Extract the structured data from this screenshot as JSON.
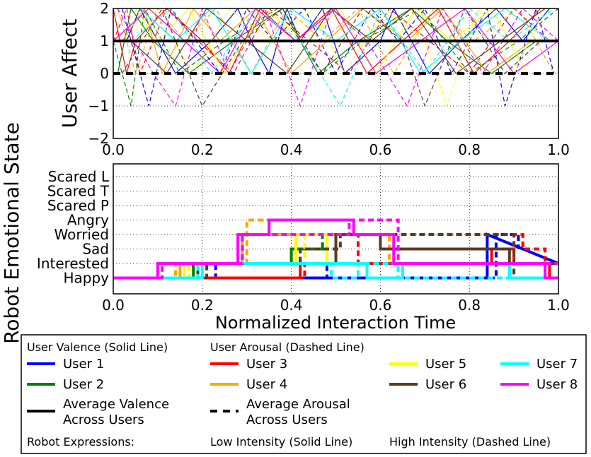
{
  "figure": {
    "ylabel_outer": "Robot Emotional State"
  },
  "chart_data": [
    {
      "type": "line",
      "ylabel": "User Affect",
      "xlabel": "",
      "xlim": [
        0,
        1
      ],
      "ylim": [
        -2,
        2
      ],
      "xticks": [
        "0.0",
        "0.2",
        "0.4",
        "0.6",
        "0.8",
        "1.0"
      ],
      "yticks": [
        "−2",
        "−1",
        "0",
        "1",
        "2"
      ],
      "grid": true,
      "average_valence": 1,
      "average_arousal": 0,
      "series": [
        {
          "name": "User 1",
          "color": "#0000ff",
          "valence_x": [
            0.03,
            0.06,
            0.14,
            0.22,
            0.28,
            0.31,
            0.35,
            0.39,
            0.42,
            0.47,
            0.52,
            0.6,
            0.63,
            0.71,
            0.78,
            0.86,
            0.92,
            0.98
          ],
          "valence_y": [
            1,
            2,
            0,
            1,
            2,
            1,
            0,
            2,
            1,
            2,
            0,
            1,
            2,
            0,
            1,
            2,
            1,
            2
          ],
          "arousal_x": [
            0.02,
            0.08,
            0.13,
            0.24,
            0.3,
            0.36,
            0.43,
            0.5,
            0.58,
            0.64,
            0.7,
            0.76,
            0.84,
            0.88,
            0.95,
            0.99
          ],
          "arousal_y": [
            2,
            -1,
            2,
            0,
            2,
            1,
            2,
            0,
            2,
            1,
            2,
            0,
            2,
            -1,
            2,
            0
          ]
        },
        {
          "name": "User 2",
          "color": "#008000",
          "valence_x": [
            0.01,
            0.04,
            0.09,
            0.17,
            0.27,
            0.38,
            0.46,
            0.55,
            0.67,
            0.75,
            0.85,
            0.95
          ],
          "valence_y": [
            0,
            2,
            1,
            0,
            1,
            2,
            0,
            1,
            2,
            1,
            0,
            1
          ],
          "arousal_x": [
            0.0,
            0.04,
            0.07,
            0.15,
            0.25,
            0.37,
            0.47,
            0.56,
            0.69,
            0.8,
            0.91,
            1.0
          ],
          "arousal_y": [
            1,
            -1,
            2,
            0,
            1,
            2,
            0,
            1,
            2,
            0,
            1,
            2
          ]
        },
        {
          "name": "User 3",
          "color": "#ff0000",
          "valence_x": [
            0.0,
            0.03,
            0.05,
            0.12,
            0.2,
            0.26,
            0.33,
            0.41,
            0.49,
            0.57,
            0.65,
            0.73,
            0.81,
            0.89,
            0.96
          ],
          "valence_y": [
            2,
            0,
            1,
            2,
            1,
            0,
            2,
            1,
            2,
            0,
            1,
            2,
            0,
            1,
            2
          ],
          "arousal_x": [
            0.0,
            0.03,
            0.06,
            0.12,
            0.19,
            0.27,
            0.35,
            0.44,
            0.53,
            0.62,
            0.71,
            0.8,
            0.9,
            0.98
          ],
          "arousal_y": [
            1,
            2,
            0,
            2,
            1,
            0,
            2,
            1,
            0,
            2,
            1,
            0,
            2,
            1
          ]
        },
        {
          "name": "User 4",
          "color": "#ffa500",
          "valence_x": [
            0.02,
            0.07,
            0.11,
            0.18,
            0.24,
            0.32,
            0.4,
            0.48,
            0.56,
            0.66,
            0.74,
            0.84,
            0.94
          ],
          "valence_y": [
            1,
            2,
            0,
            2,
            1,
            2,
            0,
            1,
            2,
            1,
            2,
            0,
            1
          ],
          "arousal_x": [
            0.01,
            0.05,
            0.1,
            0.16,
            0.23,
            0.31,
            0.39,
            0.47,
            0.55,
            0.63,
            0.72,
            0.81,
            0.91,
            0.99
          ],
          "arousal_y": [
            2,
            0,
            2,
            1,
            2,
            0,
            2,
            1,
            2,
            0,
            2,
            1,
            2,
            0
          ]
        },
        {
          "name": "User 5",
          "color": "#ffff00",
          "valence_x": [
            0.05,
            0.1,
            0.17,
            0.25,
            0.34,
            0.43,
            0.51,
            0.59,
            0.68,
            0.76,
            0.85,
            0.93
          ],
          "valence_y": [
            2,
            1,
            2,
            0,
            2,
            1,
            2,
            0,
            2,
            1,
            2,
            0
          ],
          "arousal_x": [
            0.03,
            0.09,
            0.18,
            0.26,
            0.36,
            0.45,
            0.52,
            0.61,
            0.7,
            0.75,
            0.82,
            0.9,
            0.97
          ],
          "arousal_y": [
            1,
            2,
            0,
            2,
            1,
            2,
            0,
            2,
            1,
            -1,
            2,
            0,
            2
          ]
        },
        {
          "name": "User 6",
          "color": "#5c3a1e",
          "valence_x": [
            0.04,
            0.12,
            0.21,
            0.3,
            0.39,
            0.49,
            0.58,
            0.67,
            0.77,
            0.87,
            0.97
          ],
          "valence_y": [
            1,
            0,
            2,
            1,
            0,
            2,
            1,
            2,
            0,
            1,
            2
          ],
          "arousal_x": [
            0.02,
            0.11,
            0.2,
            0.29,
            0.38,
            0.47,
            0.56,
            0.65,
            0.7,
            0.79,
            0.88,
            0.96
          ],
          "arousal_y": [
            0,
            2,
            -1,
            1,
            2,
            0,
            2,
            1,
            -1,
            2,
            0,
            1
          ]
        },
        {
          "name": "User 7",
          "color": "#00ffff",
          "valence_x": [
            0.06,
            0.14,
            0.22,
            0.31,
            0.4,
            0.5,
            0.6,
            0.69,
            0.78,
            0.88,
            0.98
          ],
          "valence_y": [
            2,
            1,
            2,
            0,
            2,
            1,
            2,
            0,
            1,
            2,
            1
          ],
          "arousal_x": [
            0.04,
            0.13,
            0.22,
            0.32,
            0.42,
            0.51,
            0.6,
            0.7,
            0.8,
            0.89,
            0.99
          ],
          "arousal_y": [
            1,
            2,
            0,
            2,
            1,
            -1,
            2,
            0,
            2,
            1,
            2
          ]
        },
        {
          "name": "User 8",
          "color": "#ff00ff",
          "valence_x": [
            0.0,
            0.08,
            0.16,
            0.24,
            0.32,
            0.41,
            0.5,
            0.59,
            0.69,
            0.79,
            0.9,
            1.0
          ],
          "valence_y": [
            1,
            2,
            1,
            0,
            2,
            1,
            2,
            0,
            1,
            2,
            0,
            1
          ],
          "arousal_x": [
            0.01,
            0.09,
            0.14,
            0.2,
            0.26,
            0.34,
            0.42,
            0.49,
            0.57,
            0.66,
            0.74,
            0.83,
            0.92,
            1.0
          ],
          "arousal_y": [
            2,
            0,
            -1,
            2,
            0,
            2,
            -1,
            2,
            1,
            -1,
            2,
            0,
            2,
            1
          ]
        }
      ]
    },
    {
      "type": "line",
      "xlabel": "Normalized Interaction Time",
      "ylabel": "",
      "xlim": [
        0,
        1
      ],
      "xticks": [
        "0.0",
        "0.2",
        "0.4",
        "0.6",
        "0.8",
        "1.0"
      ],
      "categories": [
        "Happy",
        "Interested",
        "Sad",
        "Worried",
        "Angry",
        "Scared P",
        "Scared T",
        "Scared L"
      ],
      "grid": true,
      "step_series": [
        {
          "name": "User 1",
          "color": "#0000ff",
          "x": [
            0.0,
            0.22,
            0.45,
            0.45,
            0.52,
            0.84,
            0.84,
            0.92,
            1.0
          ],
          "y": [
            0,
            0,
            0,
            0,
            0,
            0,
            3,
            2,
            1
          ]
        },
        {
          "name": "User 1",
          "color": "#0000ff",
          "dashed": true,
          "x": [
            0.0,
            0.23,
            0.23,
            0.48,
            0.48,
            0.55,
            0.86,
            0.86,
            0.91,
            0.91
          ],
          "y": [
            0,
            0,
            1,
            1,
            0,
            0,
            0,
            3,
            3,
            2
          ]
        },
        {
          "name": "User 2",
          "color": "#008000",
          "x": [
            0.0,
            0.18,
            0.18,
            0.4,
            0.4,
            0.48,
            0.48
          ],
          "y": [
            0,
            0,
            1,
            1,
            2,
            2,
            1
          ]
        },
        {
          "name": "User 2",
          "color": "#008000",
          "dashed": true,
          "x": [
            0.0,
            0.17,
            0.17,
            0.42,
            0.42,
            0.47,
            0.47
          ],
          "y": [
            0,
            0,
            1,
            1,
            2,
            2,
            3
          ]
        },
        {
          "name": "User 3",
          "color": "#ff0000",
          "x": [
            0.0,
            0.42,
            0.42,
            0.85,
            0.85,
            0.9,
            0.9,
            0.98,
            0.98
          ],
          "y": [
            0,
            0,
            1,
            1,
            2,
            2,
            1,
            1,
            0
          ]
        },
        {
          "name": "User 3",
          "color": "#ff0000",
          "dashed": true,
          "x": [
            0.0,
            0.43,
            0.43,
            0.55,
            0.55,
            0.65,
            0.92,
            0.92,
            0.97,
            0.97
          ],
          "y": [
            0,
            0,
            1,
            1,
            3,
            3,
            3,
            2,
            2,
            1
          ]
        },
        {
          "name": "User 4",
          "color": "#ffa500",
          "x": [
            0.0,
            0.15,
            0.15,
            0.29,
            0.29,
            0.5,
            0.5
          ],
          "y": [
            0,
            0,
            1,
            1,
            3,
            3,
            1
          ]
        },
        {
          "name": "User 4",
          "color": "#ffa500",
          "dashed": true,
          "x": [
            0.0,
            0.14,
            0.14,
            0.3,
            0.3,
            0.54,
            0.54,
            0.62,
            0.62
          ],
          "y": [
            0,
            0,
            1,
            1,
            4,
            4,
            3,
            3,
            1
          ]
        },
        {
          "name": "User 5",
          "color": "#ffff00",
          "x": [
            0.0,
            0.16,
            0.16,
            0.41,
            0.41,
            0.48,
            0.48
          ],
          "y": [
            0,
            0,
            1,
            1,
            3,
            3,
            1
          ]
        },
        {
          "name": "User 5",
          "color": "#ffff00",
          "dashed": true,
          "x": [
            0.0,
            0.17,
            0.17,
            0.43,
            0.43,
            0.47
          ],
          "y": [
            0,
            0,
            1,
            1,
            3,
            3
          ]
        },
        {
          "name": "User 6",
          "color": "#5c3a1e",
          "x": [
            0.0,
            0.19,
            0.19,
            0.5,
            0.5,
            0.6,
            0.6,
            0.89,
            0.89,
            1.0
          ],
          "y": [
            0,
            0,
            1,
            1,
            3,
            3,
            2,
            2,
            1,
            1
          ]
        },
        {
          "name": "User 6",
          "color": "#5c3a1e",
          "dashed": true,
          "x": [
            0.0,
            0.21,
            0.21,
            0.42,
            0.42,
            0.51,
            0.51,
            0.59,
            0.9,
            0.9,
            0.98
          ],
          "y": [
            0,
            0,
            1,
            1,
            2,
            2,
            3,
            3,
            3,
            0,
            0
          ]
        },
        {
          "name": "User 7",
          "color": "#00ffff",
          "x": [
            0.0,
            0.2,
            0.2,
            0.57,
            0.57,
            0.65,
            0.65,
            0.89,
            0.89,
            1.0
          ],
          "y": [
            0,
            0,
            1,
            1,
            0,
            0,
            1,
            1,
            0,
            0
          ]
        },
        {
          "name": "User 7",
          "color": "#00ffff",
          "dashed": true,
          "x": [
            0.0,
            0.19,
            0.19,
            0.49,
            0.49,
            0.55,
            0.55,
            0.64,
            0.64,
            0.9
          ],
          "y": [
            0,
            0,
            1,
            1,
            0,
            0,
            1,
            1,
            0,
            0
          ]
        },
        {
          "name": "User 8",
          "color": "#ff00ff",
          "x": [
            0.0,
            0.1,
            0.1,
            0.28,
            0.28,
            0.35,
            0.35,
            0.54,
            0.54,
            0.63,
            0.63,
            0.97,
            0.97,
            1.0
          ],
          "y": [
            0,
            0,
            1,
            1,
            3,
            3,
            4,
            4,
            3,
            3,
            1,
            1,
            0,
            0
          ]
        },
        {
          "name": "User 8",
          "color": "#ff00ff",
          "dashed": true,
          "x": [
            0.0,
            0.11,
            0.11,
            0.29,
            0.29,
            0.53,
            0.53,
            0.64,
            0.64,
            1.0
          ],
          "y": [
            0,
            0,
            1,
            1,
            3,
            3,
            4,
            4,
            1,
            1
          ]
        }
      ]
    }
  ],
  "legend": {
    "valence_header": "User Valence (Solid Line)",
    "arousal_header": "User Arousal (Dashed Line)",
    "entries": [
      {
        "label": "User 1",
        "color": "#0000ff",
        "style": "solid"
      },
      {
        "label": "User 2",
        "color": "#008000",
        "style": "solid"
      },
      {
        "label": "User 3",
        "color": "#ff0000",
        "style": "solid"
      },
      {
        "label": "User 4",
        "color": "#ffa500",
        "style": "solid"
      },
      {
        "label": "User 5",
        "color": "#ffff00",
        "style": "solid"
      },
      {
        "label": "User 6",
        "color": "#5c3a1e",
        "style": "solid"
      },
      {
        "label": "User 7",
        "color": "#00ffff",
        "style": "solid"
      },
      {
        "label": "User 8",
        "color": "#ff00ff",
        "style": "solid"
      }
    ],
    "avg_valence_line1": "Average Valence",
    "avg_valence_line2": "Across Users",
    "avg_arousal_line1": "Average Arousal",
    "avg_arousal_line2": "Across Users",
    "robot_expr_label": "Robot Expressions:",
    "low_intensity": "Low Intensity (Solid Line)",
    "high_intensity": "High Intensity (Dashed Line)"
  }
}
